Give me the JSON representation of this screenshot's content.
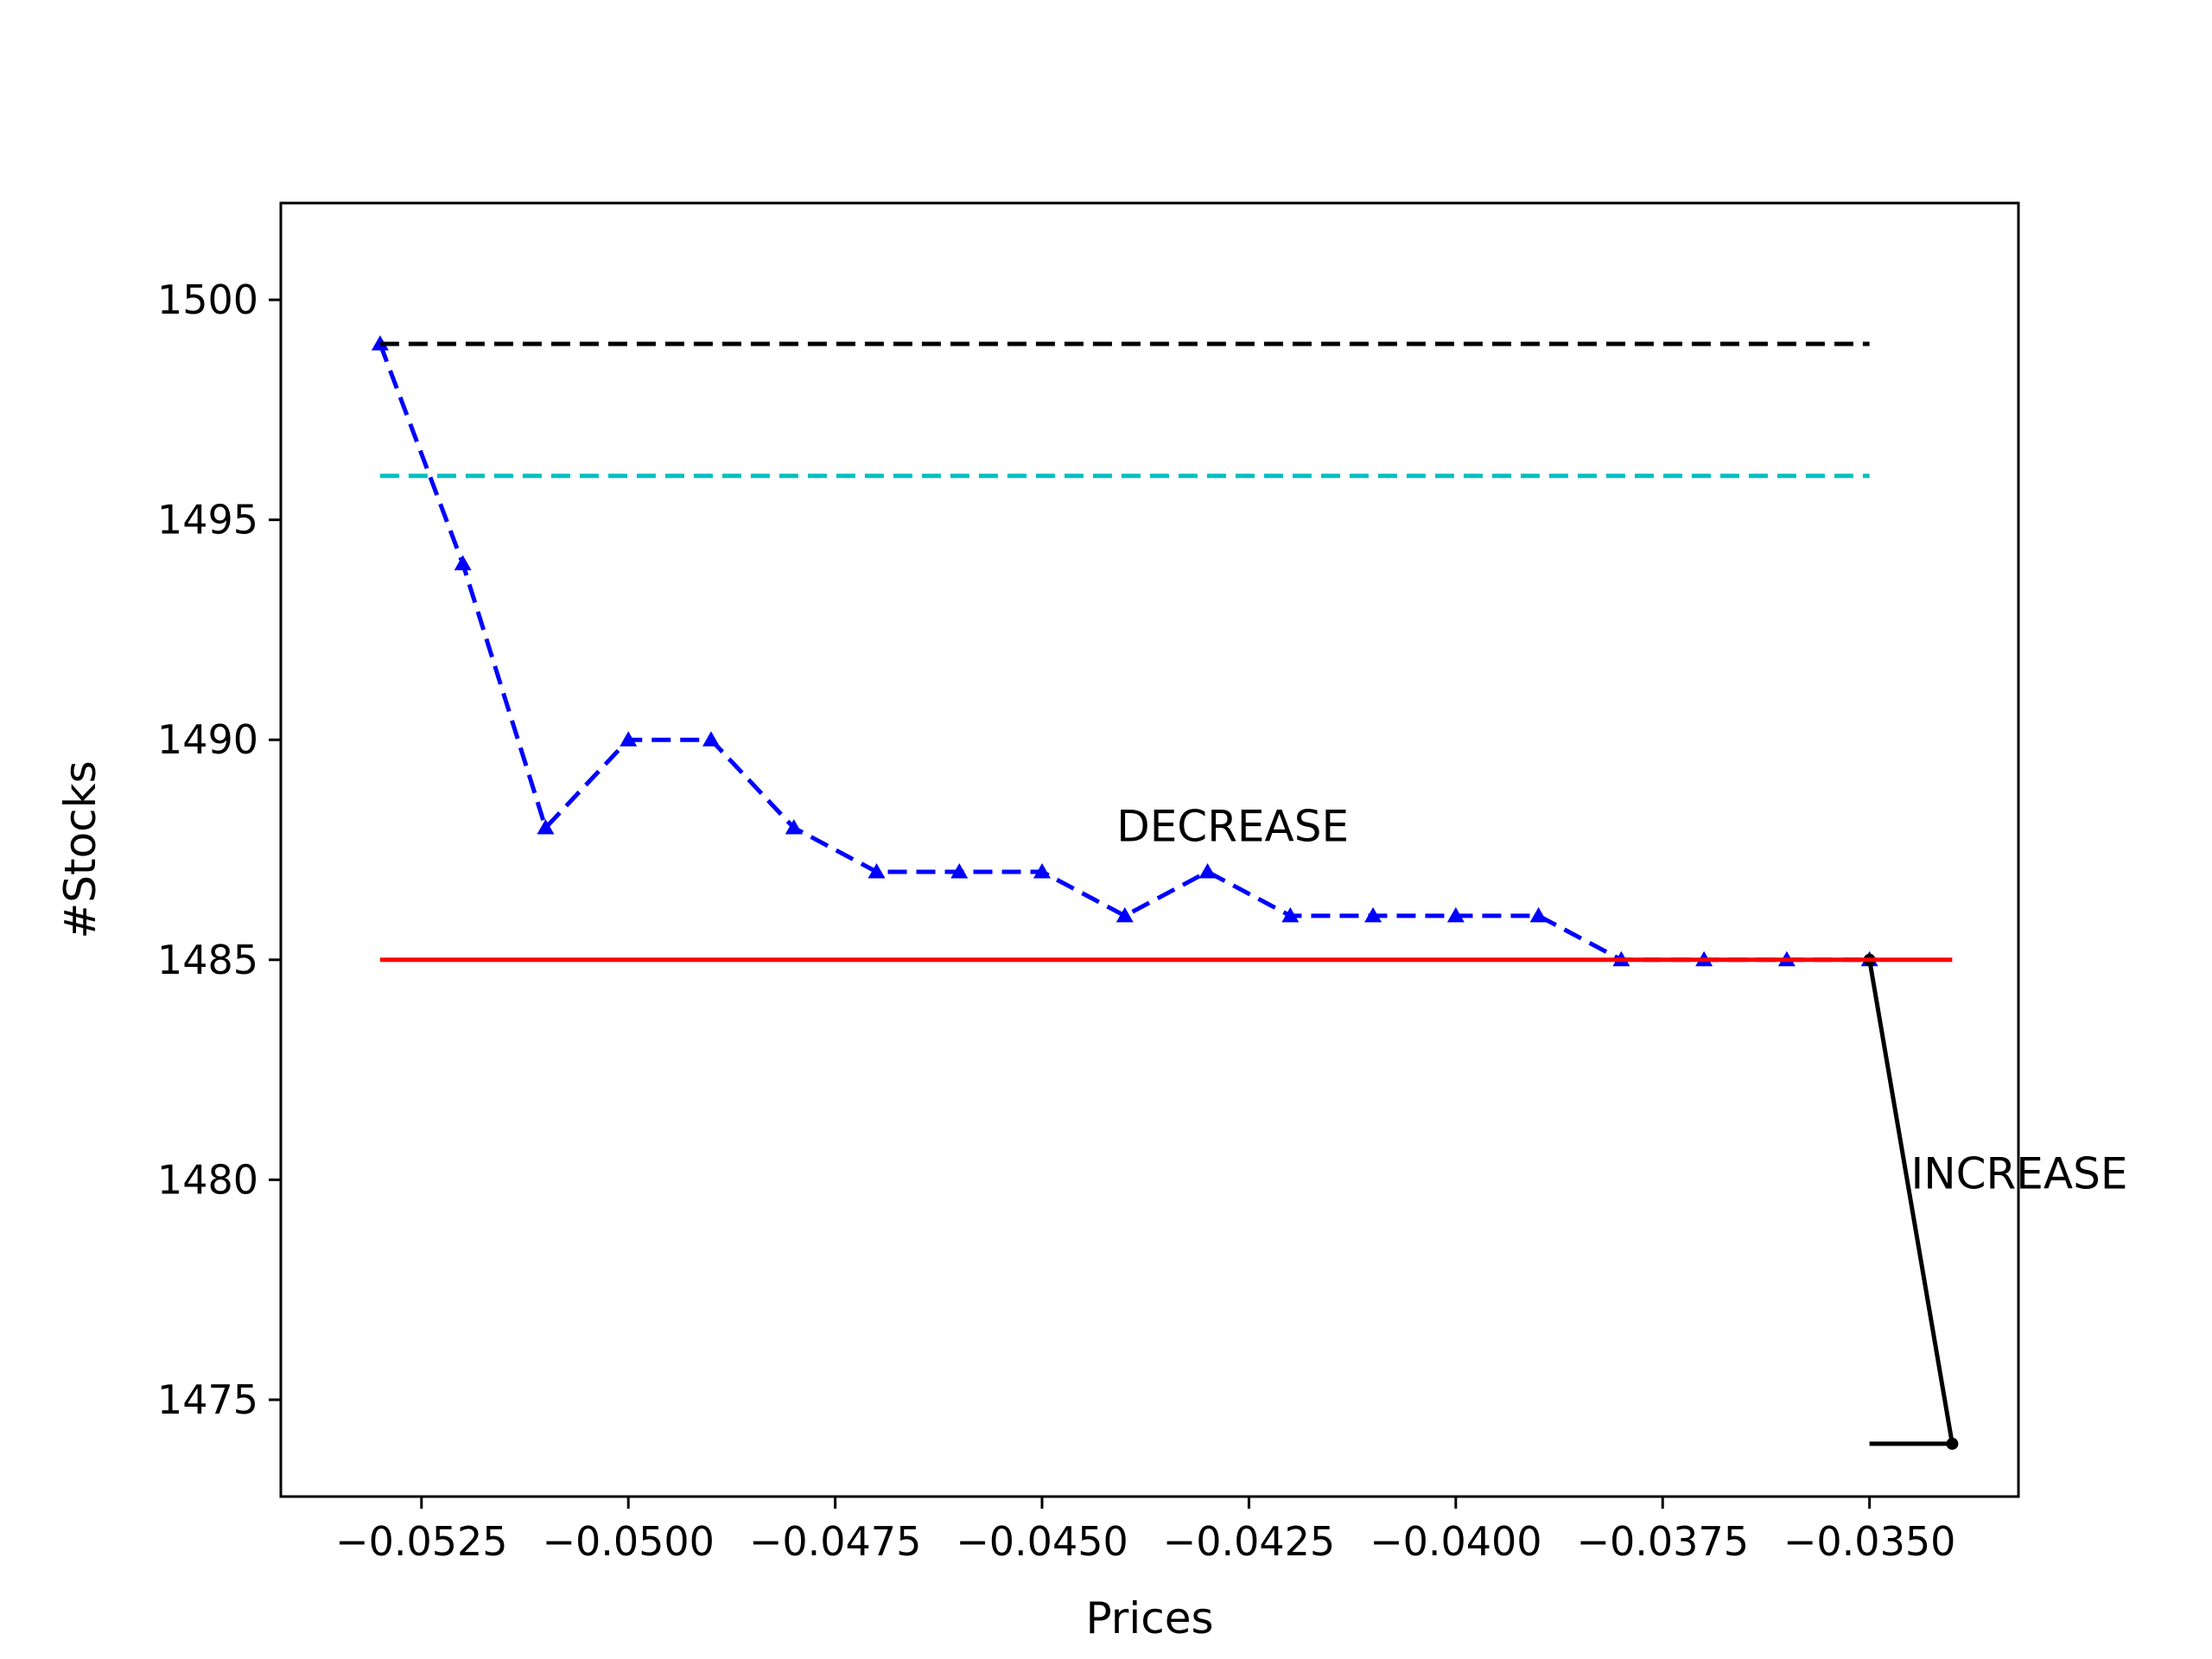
{
  "chart_data": {
    "type": "line",
    "title": "",
    "xlabel": "Prices",
    "ylabel": "#Stocks",
    "xlim": [
      -0.0542,
      -0.0332
    ],
    "ylim": [
      1472.8,
      1502.2
    ],
    "grid": false,
    "x_ticks": [
      -0.0525,
      -0.05,
      -0.0475,
      -0.045,
      -0.0425,
      -0.04,
      -0.0375,
      -0.035
    ],
    "x_tick_labels": [
      "−0.0525",
      "−0.0500",
      "−0.0475",
      "−0.0450",
      "−0.0425",
      "−0.0400",
      "−0.0375",
      "−0.0350"
    ],
    "y_ticks": [
      1475,
      1480,
      1485,
      1490,
      1495,
      1500
    ],
    "y_tick_labels": [
      "1475",
      "1480",
      "1485",
      "1490",
      "1495",
      "1500"
    ],
    "series": [
      {
        "style": "dashed",
        "color": "#0000ff",
        "marker": "triangle",
        "x": [
          -0.053,
          -0.052,
          -0.051,
          -0.05,
          -0.049,
          -0.048,
          -0.047,
          -0.046,
          -0.045,
          -0.044,
          -0.043,
          -0.042,
          -0.041,
          -0.04,
          -0.039,
          -0.038,
          -0.037,
          -0.036,
          -0.035
        ],
        "y": [
          1499,
          1494,
          1488,
          1490,
          1490,
          1488,
          1487,
          1487,
          1487,
          1486,
          1487,
          1486,
          1486,
          1486,
          1486,
          1485,
          1485,
          1485,
          1485
        ]
      },
      {
        "style": "solid",
        "color": "#000000",
        "marker": "dot",
        "x": [
          -0.035,
          -0.034,
          -0.035
        ],
        "y": [
          1485,
          1474,
          1474
        ],
        "marker_indices": [
          0,
          1
        ]
      },
      {
        "style": "dashed",
        "color": "#000000",
        "marker": "none",
        "x": [
          -0.053,
          -0.035
        ],
        "y": [
          1499,
          1499
        ]
      },
      {
        "style": "dashed",
        "color": "#00bfbf",
        "marker": "none",
        "x": [
          -0.053,
          -0.035
        ],
        "y": [
          1496,
          1496
        ]
      },
      {
        "style": "solid",
        "color": "#ff0000",
        "marker": "none",
        "x": [
          -0.053,
          -0.034
        ],
        "y": [
          1485,
          1485
        ]
      }
    ],
    "annotations": [
      {
        "text": "DECREASE",
        "x": -0.0441,
        "y": 1487.7
      },
      {
        "text": "INCREASE",
        "x": -0.0345,
        "y": 1479.8
      }
    ]
  }
}
